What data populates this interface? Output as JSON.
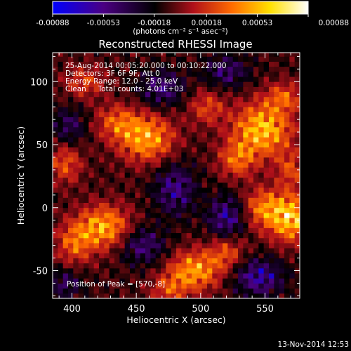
{
  "chart_data": {
    "type": "heatmap",
    "title": "Reconstructed RHESSI Image",
    "xlabel": "Heliocentric X (arcsec)",
    "ylabel": "Heliocentric Y (arcsec)",
    "xlim": [
      385,
      577
    ],
    "ylim": [
      -72,
      123
    ],
    "x_ticks": [
      400,
      450,
      500,
      550
    ],
    "y_ticks": [
      -50,
      0,
      50,
      100
    ],
    "colorbar": {
      "range": [
        -0.00088,
        0.00088
      ],
      "tick_values": [
        -0.00088,
        -0.00053,
        -0.00018,
        0.00018,
        0.00053,
        0.00088
      ],
      "tick_labels": [
        "-0.00088",
        "-0.00053",
        "-0.00018",
        "0.00018",
        "0.00053",
        "0.00088"
      ],
      "unit_label": "(photons cm⁻² s⁻¹ asec⁻²)",
      "colors": [
        "#0000ff",
        "#4b0082",
        "#000000",
        "#b0101a",
        "#ff6a00",
        "#ffe000",
        "#ffffff"
      ]
    },
    "annotations": [
      "25-Aug-2014 00:05:20.000 to 00:10:22.000",
      "Detectors: 3F 6F 9F, Att 0",
      "Energy Range: 12.0 - 25.0 keV",
      "Clean     Total counts: 4.01E+03"
    ],
    "peak_label": "Position of Peak = [570,-8]",
    "peak": {
      "x": 570,
      "y": -8
    },
    "sources": [
      {
        "x": 458,
        "y": 55,
        "amp": 0.00075,
        "sx": 15,
        "sy": 13
      },
      {
        "x": 435,
        "y": 68,
        "amp": 0.00045,
        "sx": 12,
        "sy": 10
      },
      {
        "x": 548,
        "y": 62,
        "amp": 0.00085,
        "sx": 16,
        "sy": 15
      },
      {
        "x": 528,
        "y": 38,
        "amp": 0.0005,
        "sx": 10,
        "sy": 10
      },
      {
        "x": 565,
        "y": 88,
        "amp": 0.00045,
        "sx": 10,
        "sy": 8
      },
      {
        "x": 570,
        "y": -8,
        "amp": 0.00088,
        "sx": 12,
        "sy": 13
      },
      {
        "x": 548,
        "y": 0,
        "amp": 0.00055,
        "sx": 11,
        "sy": 11
      },
      {
        "x": 425,
        "y": -15,
        "amp": 0.00075,
        "sx": 14,
        "sy": 12
      },
      {
        "x": 402,
        "y": -28,
        "amp": 0.0005,
        "sx": 10,
        "sy": 12
      },
      {
        "x": 495,
        "y": -50,
        "amp": 0.00072,
        "sx": 14,
        "sy": 11
      },
      {
        "x": 520,
        "y": -35,
        "amp": 0.00045,
        "sx": 10,
        "sy": 10
      },
      {
        "x": 475,
        "y": -65,
        "amp": 0.0004,
        "sx": 10,
        "sy": 8
      },
      {
        "x": 395,
        "y": 35,
        "amp": 0.00045,
        "sx": 9,
        "sy": 11
      },
      {
        "x": 505,
        "y": 80,
        "amp": 0.0004,
        "sx": 10,
        "sy": 10
      },
      {
        "x": 410,
        "y": 100,
        "amp": 0.0004,
        "sx": 11,
        "sy": 9
      },
      {
        "x": 570,
        "y": 30,
        "amp": 0.0004,
        "sx": 8,
        "sy": 10
      },
      {
        "x": 480,
        "y": 15,
        "amp": -0.00055,
        "sx": 11,
        "sy": 14
      },
      {
        "x": 455,
        "y": -30,
        "amp": -0.0005,
        "sx": 12,
        "sy": 10
      },
      {
        "x": 520,
        "y": -8,
        "amp": -0.0006,
        "sx": 10,
        "sy": 12
      },
      {
        "x": 545,
        "y": -55,
        "amp": -0.00065,
        "sx": 13,
        "sy": 10
      },
      {
        "x": 470,
        "y": 95,
        "amp": -0.0005,
        "sx": 12,
        "sy": 10
      },
      {
        "x": 398,
        "y": 65,
        "amp": -0.0004,
        "sx": 9,
        "sy": 10
      },
      {
        "x": 395,
        "y": -60,
        "amp": -0.0004,
        "sx": 9,
        "sy": 8
      },
      {
        "x": 520,
        "y": 108,
        "amp": -0.00045,
        "sx": 12,
        "sy": 9
      }
    ]
  },
  "timestamp": "13-Nov-2014 12:53"
}
